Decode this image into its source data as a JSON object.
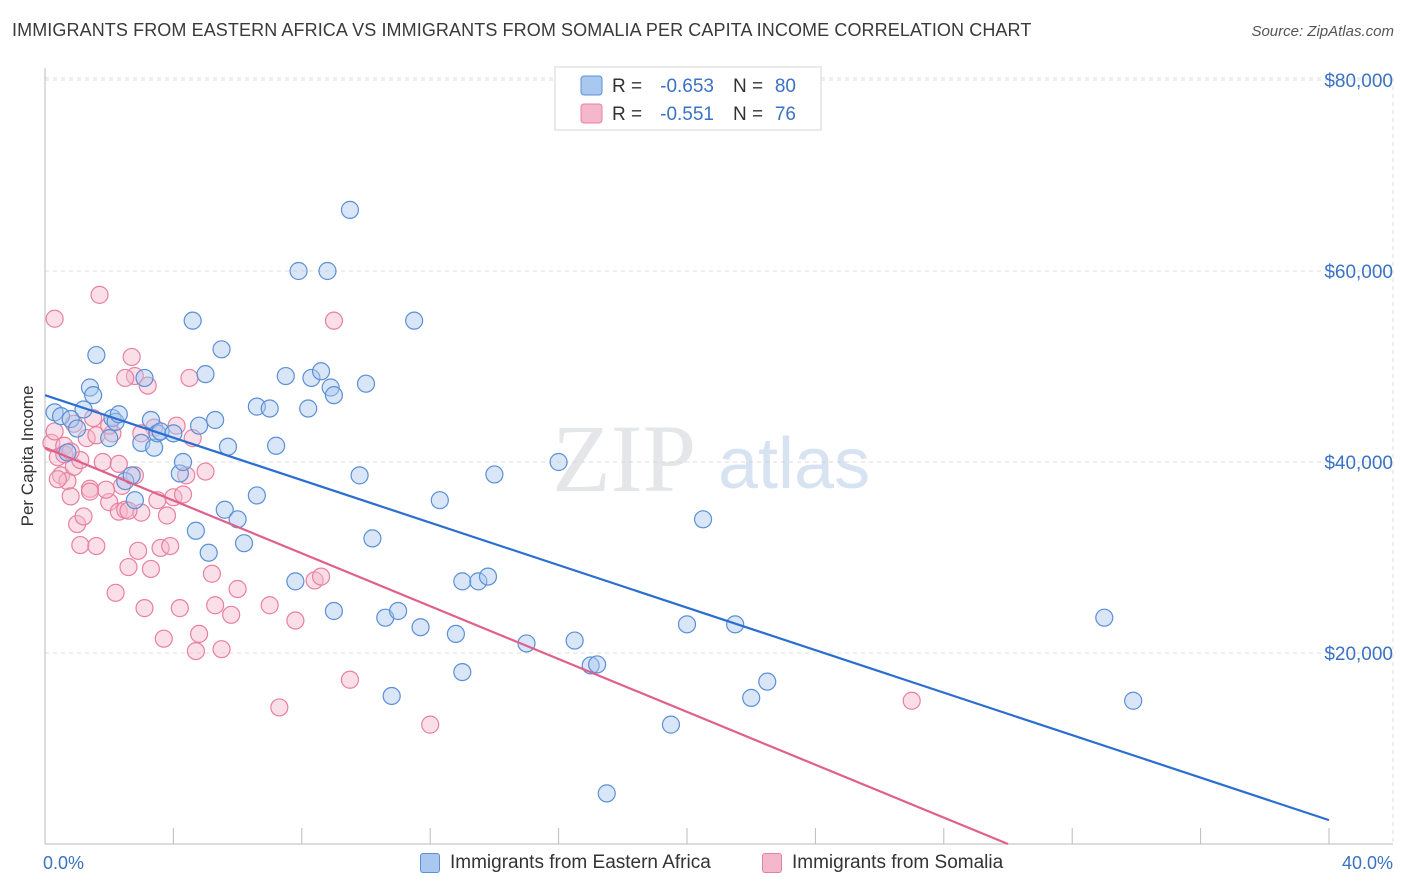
{
  "title": "IMMIGRANTS FROM EASTERN AFRICA VS IMMIGRANTS FROM SOMALIA PER CAPITA INCOME CORRELATION CHART",
  "source": "Source: ZipAtlas.com",
  "watermark": {
    "zip": "ZIP",
    "atlas": "atlas"
  },
  "colors": {
    "blue_fill": "#a9c8ef",
    "blue_stroke": "#5b8fd6",
    "blue_line": "#2a6fcf",
    "pink_fill": "#f5b7cb",
    "pink_stroke": "#e8809f",
    "pink_line": "#e0608c",
    "axis_label": "#3a72c4",
    "grid": "#dddddd"
  },
  "legend_top": {
    "rows": [
      {
        "r_label": "R =",
        "r_value": "-0.653",
        "n_label": "N =",
        "n_value": "80"
      },
      {
        "r_label": "R =",
        "r_value": "-0.551",
        "n_label": "N =",
        "n_value": "76"
      }
    ]
  },
  "legend_bottom": {
    "series1": "Immigrants from Eastern Africa",
    "series2": "Immigrants from Somalia"
  },
  "chart_data": {
    "type": "scatter",
    "xlabel": "",
    "ylabel": "Per Capita Income",
    "xlim": [
      0,
      40
    ],
    "ylim": [
      0,
      80000
    ],
    "x_tick_labels": [
      "0.0%",
      "40.0%"
    ],
    "y_ticks": [
      20000,
      40000,
      60000,
      80000
    ],
    "y_tick_labels": [
      "$20,000",
      "$40,000",
      "$60,000",
      "$80,000"
    ],
    "grid": true,
    "series": [
      {
        "name": "Immigrants from Eastern Africa",
        "trend": {
          "x": [
            0,
            40
          ],
          "y": [
            47000,
            2500
          ]
        },
        "points": [
          [
            0.3,
            45200
          ],
          [
            0.5,
            44800
          ],
          [
            0.8,
            44500
          ],
          [
            1.0,
            43500
          ],
          [
            1.2,
            45500
          ],
          [
            0.7,
            41000
          ],
          [
            1.4,
            47800
          ],
          [
            1.5,
            47000
          ],
          [
            1.6,
            51200
          ],
          [
            2.0,
            42500
          ],
          [
            2.1,
            44600
          ],
          [
            2.2,
            44200
          ],
          [
            2.3,
            45000
          ],
          [
            2.5,
            38000
          ],
          [
            2.7,
            38600
          ],
          [
            3.0,
            42000
          ],
          [
            3.1,
            48800
          ],
          [
            3.3,
            44400
          ],
          [
            3.4,
            41500
          ],
          [
            3.5,
            43000
          ],
          [
            3.6,
            43200
          ],
          [
            4.0,
            43000
          ],
          [
            4.2,
            38800
          ],
          [
            4.3,
            40000
          ],
          [
            4.6,
            54800
          ],
          [
            4.8,
            43800
          ],
          [
            5.0,
            49200
          ],
          [
            5.3,
            44400
          ],
          [
            5.5,
            51800
          ],
          [
            5.7,
            41600
          ],
          [
            4.7,
            32800
          ],
          [
            5.1,
            30500
          ],
          [
            5.6,
            35000
          ],
          [
            6.0,
            34000
          ],
          [
            6.2,
            31500
          ],
          [
            6.6,
            36500
          ],
          [
            6.6,
            45800
          ],
          [
            7.0,
            45600
          ],
          [
            7.2,
            41700
          ],
          [
            7.5,
            49000
          ],
          [
            7.8,
            27500
          ],
          [
            7.9,
            60000
          ],
          [
            8.2,
            45600
          ],
          [
            8.3,
            48800
          ],
          [
            8.6,
            49500
          ],
          [
            8.9,
            47800
          ],
          [
            8.8,
            60000
          ],
          [
            9.0,
            24400
          ],
          [
            9.5,
            66400
          ],
          [
            9.8,
            38600
          ],
          [
            10.0,
            48200
          ],
          [
            10.2,
            32000
          ],
          [
            10.6,
            23700
          ],
          [
            10.8,
            15500
          ],
          [
            11.0,
            24400
          ],
          [
            11.5,
            54800
          ],
          [
            11.7,
            22700
          ],
          [
            12.3,
            36000
          ],
          [
            12.8,
            22000
          ],
          [
            13.0,
            27500
          ],
          [
            13.0,
            18000
          ],
          [
            13.5,
            27500
          ],
          [
            13.8,
            28000
          ],
          [
            14.0,
            38700
          ],
          [
            15.0,
            21000
          ],
          [
            16.0,
            40000
          ],
          [
            16.5,
            21300
          ],
          [
            17.0,
            18700
          ],
          [
            17.2,
            18800
          ],
          [
            17.5,
            5300
          ],
          [
            19.5,
            12500
          ],
          [
            20.0,
            23000
          ],
          [
            20.5,
            34000
          ],
          [
            21.5,
            23000
          ],
          [
            22.0,
            15300
          ],
          [
            22.5,
            17000
          ],
          [
            33.0,
            23700
          ],
          [
            33.9,
            15000
          ],
          [
            2.8,
            36000
          ],
          [
            9.0,
            47000
          ]
        ]
      },
      {
        "name": "Immigrants from Somalia",
        "trend": {
          "x": [
            0,
            30
          ],
          "y": [
            41500,
            0
          ]
        },
        "points": [
          [
            0.2,
            42000
          ],
          [
            0.3,
            43200
          ],
          [
            0.4,
            40500
          ],
          [
            0.5,
            38600
          ],
          [
            0.6,
            41700
          ],
          [
            0.7,
            38000
          ],
          [
            0.8,
            36400
          ],
          [
            0.9,
            39500
          ],
          [
            1.0,
            33500
          ],
          [
            1.1,
            31300
          ],
          [
            1.2,
            34300
          ],
          [
            1.3,
            42500
          ],
          [
            1.4,
            37200
          ],
          [
            1.5,
            44600
          ],
          [
            1.6,
            31200
          ],
          [
            1.8,
            40000
          ],
          [
            2.0,
            35800
          ],
          [
            2.1,
            43000
          ],
          [
            2.2,
            26300
          ],
          [
            2.3,
            34800
          ],
          [
            2.4,
            37500
          ],
          [
            2.5,
            35000
          ],
          [
            2.6,
            29000
          ],
          [
            2.7,
            51000
          ],
          [
            2.8,
            49000
          ],
          [
            2.9,
            30700
          ],
          [
            3.0,
            34700
          ],
          [
            3.1,
            24700
          ],
          [
            3.2,
            48000
          ],
          [
            3.3,
            28800
          ],
          [
            3.5,
            36000
          ],
          [
            3.6,
            31000
          ],
          [
            3.7,
            21500
          ],
          [
            3.9,
            31200
          ],
          [
            4.0,
            36300
          ],
          [
            4.2,
            24700
          ],
          [
            4.4,
            38600
          ],
          [
            4.5,
            48800
          ],
          [
            4.6,
            42500
          ],
          [
            4.7,
            20200
          ],
          [
            4.8,
            22000
          ],
          [
            5.0,
            39000
          ],
          [
            5.2,
            28300
          ],
          [
            5.3,
            25000
          ],
          [
            5.5,
            20400
          ],
          [
            5.8,
            24000
          ],
          [
            6.0,
            26700
          ],
          [
            7.0,
            25000
          ],
          [
            7.3,
            14300
          ],
          [
            7.8,
            23400
          ],
          [
            8.4,
            27600
          ],
          [
            8.6,
            28000
          ],
          [
            9.0,
            54800
          ],
          [
            9.5,
            17200
          ],
          [
            12.0,
            12500
          ],
          [
            27.0,
            15000
          ],
          [
            0.3,
            55000
          ],
          [
            1.7,
            57500
          ],
          [
            2.5,
            48800
          ],
          [
            0.9,
            44000
          ],
          [
            1.6,
            42800
          ],
          [
            0.6,
            40800
          ],
          [
            2.0,
            43800
          ],
          [
            3.4,
            43600
          ],
          [
            3.8,
            34400
          ],
          [
            2.8,
            38600
          ],
          [
            4.1,
            43800
          ],
          [
            1.1,
            40200
          ],
          [
            0.4,
            38200
          ],
          [
            1.9,
            37100
          ],
          [
            3.0,
            43000
          ],
          [
            2.3,
            39800
          ],
          [
            0.8,
            41100
          ],
          [
            4.3,
            36600
          ],
          [
            1.4,
            36900
          ],
          [
            2.6,
            34900
          ]
        ]
      }
    ]
  }
}
